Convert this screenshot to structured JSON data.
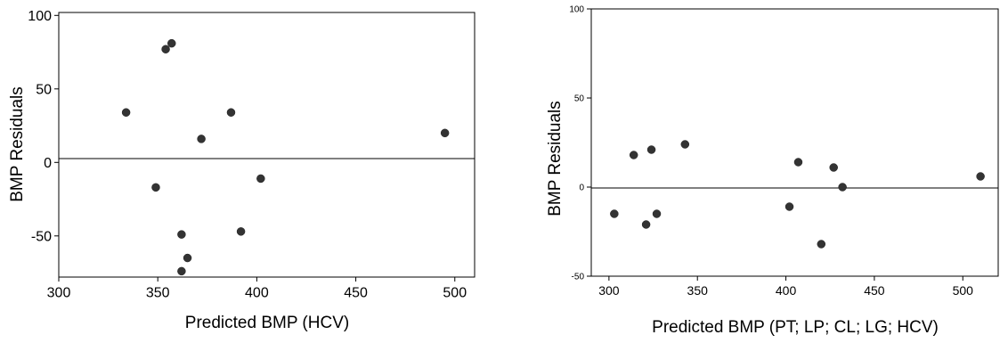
{
  "chart_data": [
    {
      "type": "scatter",
      "title": "",
      "xlabel": "Predicted BMP (HCV)",
      "ylabel": "BMP Residuals",
      "xlim": [
        300,
        510
      ],
      "ylim": [
        -78,
        102
      ],
      "xticks": [
        300,
        350,
        400,
        450,
        500
      ],
      "yticks": [
        -50,
        0,
        50,
        100
      ],
      "reference_line_y": 0,
      "grid": false,
      "points": [
        {
          "x": 334,
          "y": 34
        },
        {
          "x": 349,
          "y": -17
        },
        {
          "x": 354,
          "y": 77
        },
        {
          "x": 357,
          "y": 81
        },
        {
          "x": 362,
          "y": -49
        },
        {
          "x": 362,
          "y": -74
        },
        {
          "x": 365,
          "y": -65
        },
        {
          "x": 372,
          "y": 16
        },
        {
          "x": 387,
          "y": 34
        },
        {
          "x": 392,
          "y": -47
        },
        {
          "x": 402,
          "y": -11
        },
        {
          "x": 495,
          "y": 20
        }
      ]
    },
    {
      "type": "scatter",
      "title": "",
      "xlabel": "Predicted BMP (PT; LP; CL; LG; HCV)",
      "ylabel": "BMP Residuals",
      "xlim": [
        290,
        520
      ],
      "ylim": [
        -50,
        100
      ],
      "xticks": [
        300,
        350,
        400,
        450,
        500
      ],
      "yticks": [
        -50,
        0,
        50,
        100
      ],
      "reference_line_y": 0,
      "grid": false,
      "points": [
        {
          "x": 303,
          "y": -15
        },
        {
          "x": 314,
          "y": 18
        },
        {
          "x": 321,
          "y": -21
        },
        {
          "x": 324,
          "y": 21
        },
        {
          "x": 327,
          "y": -15
        },
        {
          "x": 343,
          "y": 24
        },
        {
          "x": 402,
          "y": -11
        },
        {
          "x": 407,
          "y": 14
        },
        {
          "x": 420,
          "y": -32
        },
        {
          "x": 427,
          "y": 11
        },
        {
          "x": 432,
          "y": 0
        },
        {
          "x": 510,
          "y": 6
        }
      ]
    }
  ]
}
